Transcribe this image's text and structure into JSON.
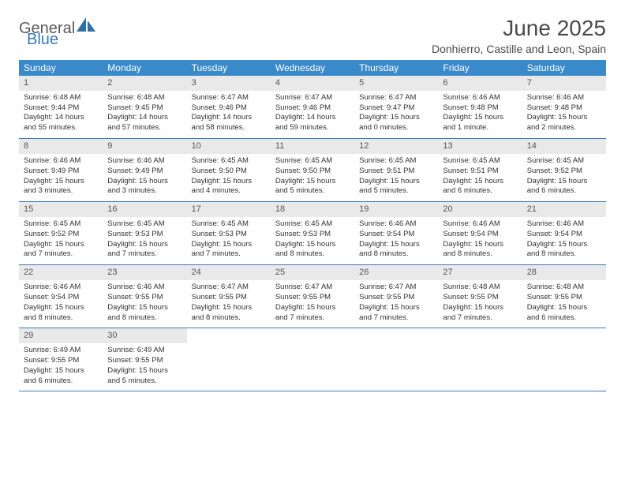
{
  "logo": {
    "text1": "General",
    "text2": "Blue",
    "color1": "#5a5a5a",
    "color2": "#3a7ab8",
    "icon_color": "#2f6fa8"
  },
  "title": "June 2025",
  "location": "Donhierro, Castille and Leon, Spain",
  "colors": {
    "header_bg": "#3a8acb",
    "header_text": "#ffffff",
    "daynum_bg": "#e9e9e9",
    "daynum_text": "#555555",
    "body_text": "#333333",
    "rule": "#3a7ab8"
  },
  "typography": {
    "title_fontsize": 28,
    "location_fontsize": 14,
    "dow_fontsize": 12,
    "daynum_fontsize": 11,
    "body_fontsize": 9.5
  },
  "days_of_week": [
    "Sunday",
    "Monday",
    "Tuesday",
    "Wednesday",
    "Thursday",
    "Friday",
    "Saturday"
  ],
  "start_offset": 0,
  "days": [
    {
      "n": 1,
      "sunrise": "6:48 AM",
      "sunset": "9:44 PM",
      "daylight": "14 hours and 55 minutes."
    },
    {
      "n": 2,
      "sunrise": "6:48 AM",
      "sunset": "9:45 PM",
      "daylight": "14 hours and 57 minutes."
    },
    {
      "n": 3,
      "sunrise": "6:47 AM",
      "sunset": "9:46 PM",
      "daylight": "14 hours and 58 minutes."
    },
    {
      "n": 4,
      "sunrise": "6:47 AM",
      "sunset": "9:46 PM",
      "daylight": "14 hours and 59 minutes."
    },
    {
      "n": 5,
      "sunrise": "6:47 AM",
      "sunset": "9:47 PM",
      "daylight": "15 hours and 0 minutes."
    },
    {
      "n": 6,
      "sunrise": "6:46 AM",
      "sunset": "9:48 PM",
      "daylight": "15 hours and 1 minute."
    },
    {
      "n": 7,
      "sunrise": "6:46 AM",
      "sunset": "9:48 PM",
      "daylight": "15 hours and 2 minutes."
    },
    {
      "n": 8,
      "sunrise": "6:46 AM",
      "sunset": "9:49 PM",
      "daylight": "15 hours and 3 minutes."
    },
    {
      "n": 9,
      "sunrise": "6:46 AM",
      "sunset": "9:49 PM",
      "daylight": "15 hours and 3 minutes."
    },
    {
      "n": 10,
      "sunrise": "6:45 AM",
      "sunset": "9:50 PM",
      "daylight": "15 hours and 4 minutes."
    },
    {
      "n": 11,
      "sunrise": "6:45 AM",
      "sunset": "9:50 PM",
      "daylight": "15 hours and 5 minutes."
    },
    {
      "n": 12,
      "sunrise": "6:45 AM",
      "sunset": "9:51 PM",
      "daylight": "15 hours and 5 minutes."
    },
    {
      "n": 13,
      "sunrise": "6:45 AM",
      "sunset": "9:51 PM",
      "daylight": "15 hours and 6 minutes."
    },
    {
      "n": 14,
      "sunrise": "6:45 AM",
      "sunset": "9:52 PM",
      "daylight": "15 hours and 6 minutes."
    },
    {
      "n": 15,
      "sunrise": "6:45 AM",
      "sunset": "9:52 PM",
      "daylight": "15 hours and 7 minutes."
    },
    {
      "n": 16,
      "sunrise": "6:45 AM",
      "sunset": "9:53 PM",
      "daylight": "15 hours and 7 minutes."
    },
    {
      "n": 17,
      "sunrise": "6:45 AM",
      "sunset": "9:53 PM",
      "daylight": "15 hours and 7 minutes."
    },
    {
      "n": 18,
      "sunrise": "6:45 AM",
      "sunset": "9:53 PM",
      "daylight": "15 hours and 8 minutes."
    },
    {
      "n": 19,
      "sunrise": "6:46 AM",
      "sunset": "9:54 PM",
      "daylight": "15 hours and 8 minutes."
    },
    {
      "n": 20,
      "sunrise": "6:46 AM",
      "sunset": "9:54 PM",
      "daylight": "15 hours and 8 minutes."
    },
    {
      "n": 21,
      "sunrise": "6:46 AM",
      "sunset": "9:54 PM",
      "daylight": "15 hours and 8 minutes."
    },
    {
      "n": 22,
      "sunrise": "6:46 AM",
      "sunset": "9:54 PM",
      "daylight": "15 hours and 8 minutes."
    },
    {
      "n": 23,
      "sunrise": "6:46 AM",
      "sunset": "9:55 PM",
      "daylight": "15 hours and 8 minutes."
    },
    {
      "n": 24,
      "sunrise": "6:47 AM",
      "sunset": "9:55 PM",
      "daylight": "15 hours and 8 minutes."
    },
    {
      "n": 25,
      "sunrise": "6:47 AM",
      "sunset": "9:55 PM",
      "daylight": "15 hours and 7 minutes."
    },
    {
      "n": 26,
      "sunrise": "6:47 AM",
      "sunset": "9:55 PM",
      "daylight": "15 hours and 7 minutes."
    },
    {
      "n": 27,
      "sunrise": "6:48 AM",
      "sunset": "9:55 PM",
      "daylight": "15 hours and 7 minutes."
    },
    {
      "n": 28,
      "sunrise": "6:48 AM",
      "sunset": "9:55 PM",
      "daylight": "15 hours and 6 minutes."
    },
    {
      "n": 29,
      "sunrise": "6:49 AM",
      "sunset": "9:55 PM",
      "daylight": "15 hours and 6 minutes."
    },
    {
      "n": 30,
      "sunrise": "6:49 AM",
      "sunset": "9:55 PM",
      "daylight": "15 hours and 5 minutes."
    }
  ],
  "labels": {
    "sunrise": "Sunrise:",
    "sunset": "Sunset:",
    "daylight": "Daylight:"
  }
}
